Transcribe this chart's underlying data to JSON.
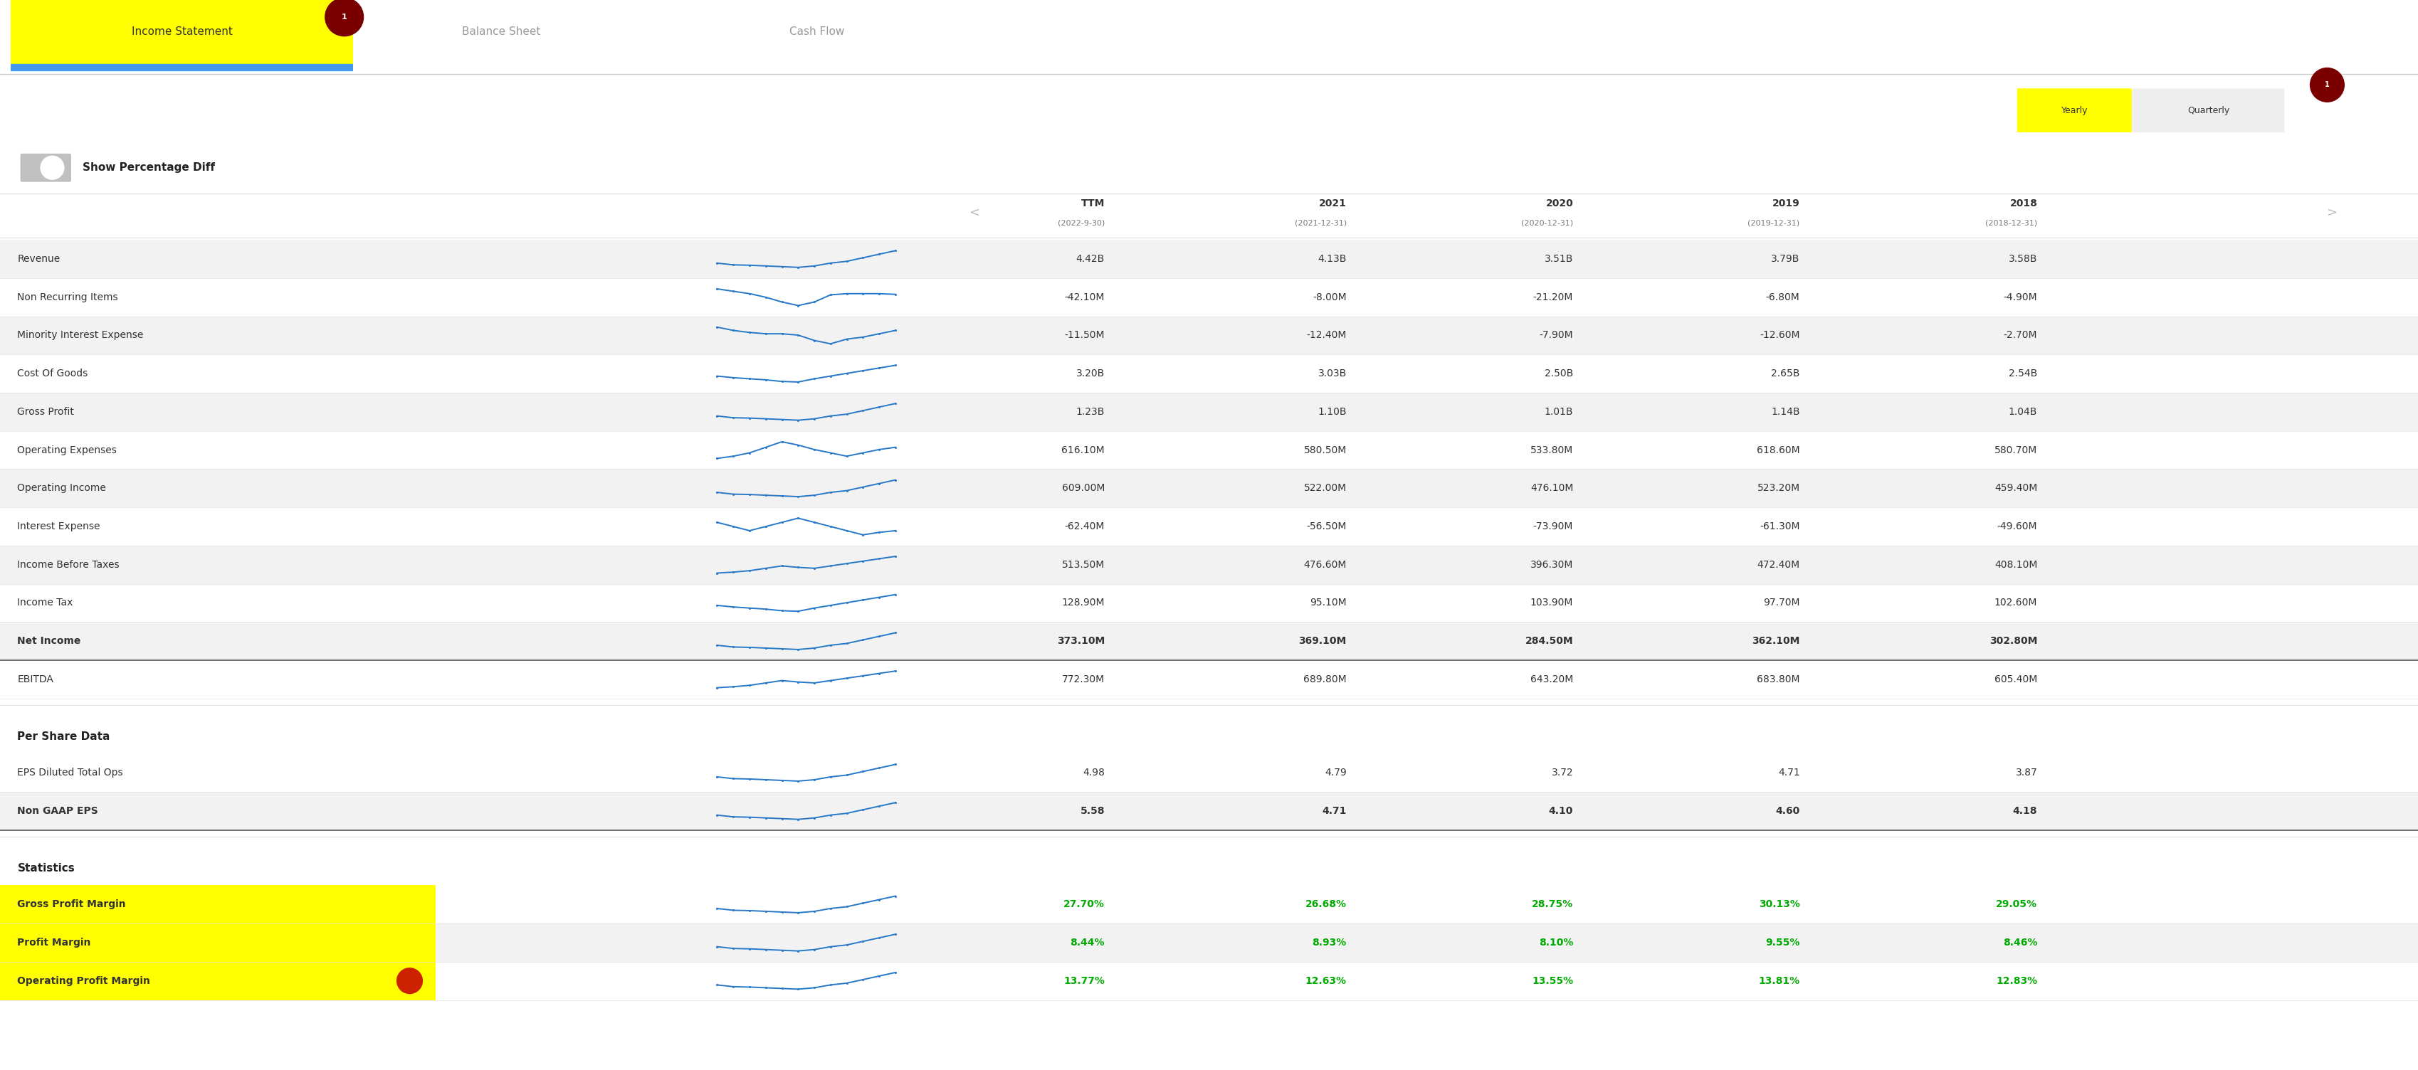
{
  "rows_main": [
    {
      "label": "Revenue",
      "shaded": true,
      "bold": false,
      "sep_after": false,
      "values": [
        "4.42B",
        "4.13B",
        "3.51B",
        "3.79B",
        "3.58B"
      ]
    },
    {
      "label": "Non Recurring Items",
      "shaded": false,
      "bold": false,
      "sep_after": false,
      "values": [
        "-42.10M",
        "-8.00M",
        "-21.20M",
        "-6.80M",
        "-4.90M"
      ]
    },
    {
      "label": "Minority Interest Expense",
      "shaded": true,
      "bold": false,
      "sep_after": false,
      "values": [
        "-11.50M",
        "-12.40M",
        "-7.90M",
        "-12.60M",
        "-2.70M"
      ]
    },
    {
      "label": "Cost Of Goods",
      "shaded": false,
      "bold": false,
      "sep_after": false,
      "values": [
        "3.20B",
        "3.03B",
        "2.50B",
        "2.65B",
        "2.54B"
      ]
    },
    {
      "label": "Gross Profit",
      "shaded": true,
      "bold": false,
      "sep_after": false,
      "values": [
        "1.23B",
        "1.10B",
        "1.01B",
        "1.14B",
        "1.04B"
      ]
    },
    {
      "label": "Operating Expenses",
      "shaded": false,
      "bold": false,
      "sep_after": false,
      "values": [
        "616.10M",
        "580.50M",
        "533.80M",
        "618.60M",
        "580.70M"
      ]
    },
    {
      "label": "Operating Income",
      "shaded": true,
      "bold": false,
      "sep_after": false,
      "values": [
        "609.00M",
        "522.00M",
        "476.10M",
        "523.20M",
        "459.40M"
      ]
    },
    {
      "label": "Interest Expense",
      "shaded": false,
      "bold": false,
      "sep_after": false,
      "values": [
        "-62.40M",
        "-56.50M",
        "-73.90M",
        "-61.30M",
        "-49.60M"
      ]
    },
    {
      "label": "Income Before Taxes",
      "shaded": true,
      "bold": false,
      "sep_after": false,
      "values": [
        "513.50M",
        "476.60M",
        "396.30M",
        "472.40M",
        "408.10M"
      ]
    },
    {
      "label": "Income Tax",
      "shaded": false,
      "bold": false,
      "sep_after": false,
      "values": [
        "128.90M",
        "95.10M",
        "103.90M",
        "97.70M",
        "102.60M"
      ]
    },
    {
      "label": "Net Income",
      "shaded": true,
      "bold": true,
      "sep_after": true,
      "values": [
        "373.10M",
        "369.10M",
        "284.50M",
        "362.10M",
        "302.80M"
      ]
    },
    {
      "label": "EBITDA",
      "shaded": false,
      "bold": false,
      "sep_after": false,
      "values": [
        "772.30M",
        "689.80M",
        "643.20M",
        "683.80M",
        "605.40M"
      ]
    }
  ],
  "rows_per_share": [
    {
      "label": "EPS Diluted Total Ops",
      "shaded": false,
      "bold": false,
      "sep_after": false,
      "values": [
        "4.98",
        "4.79",
        "3.72",
        "4.71",
        "3.87"
      ]
    },
    {
      "label": "Non GAAP EPS",
      "shaded": true,
      "bold": true,
      "sep_after": true,
      "values": [
        "5.58",
        "4.71",
        "4.10",
        "4.60",
        "4.18"
      ]
    }
  ],
  "rows_stats": [
    {
      "label": "Gross Profit Margin",
      "shaded": false,
      "bold": true,
      "values": [
        "27.70%",
        "26.68%",
        "28.75%",
        "30.13%",
        "29.05%"
      ]
    },
    {
      "label": "Profit Margin",
      "shaded": true,
      "bold": true,
      "values": [
        "8.44%",
        "8.93%",
        "8.10%",
        "9.55%",
        "8.46%"
      ]
    },
    {
      "label": "Operating Profit Margin",
      "shaded": false,
      "bold": true,
      "values": [
        "13.77%",
        "12.63%",
        "13.55%",
        "13.81%",
        "12.83%"
      ]
    }
  ],
  "spark_styles_main": [
    "up",
    "v",
    "dip",
    "flat",
    "up",
    "mid",
    "up",
    "noisy",
    "rise",
    "flat",
    "up",
    "rise"
  ],
  "spark_styles_per": [
    "up",
    "up"
  ],
  "spark_styles_stats": [
    "up",
    "up",
    "up"
  ],
  "period_top": [
    "TTM",
    "2021",
    "2020",
    "2019",
    "2018"
  ],
  "period_bot": [
    "(2022-9-30)",
    "(2021-12-31)",
    "(2020-12-31)",
    "(2019-12-31)",
    "(2018-12-31)"
  ]
}
